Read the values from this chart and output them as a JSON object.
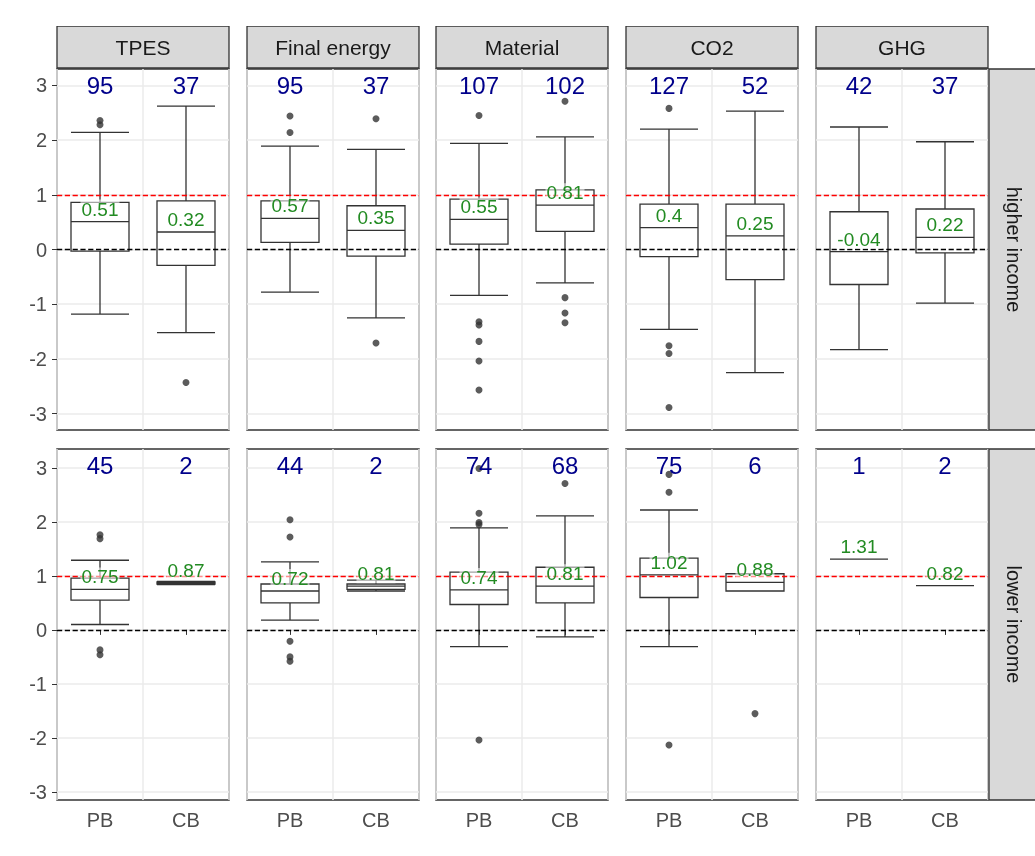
{
  "chart_data": [
    {
      "type": "box",
      "title": "TPES",
      "categories": [
        "PB",
        "CB"
      ],
      "ylim": [
        -3.3,
        3.3
      ],
      "yticks": [
        -3,
        -2,
        -1,
        0,
        1,
        2,
        3
      ],
      "grid": true,
      "tick_labels": "y",
      "boxes": [
        {
          "low": -1.18,
          "q1": -0.03,
          "median": 0.51,
          "q3": 0.86,
          "high": 2.14,
          "outliers": [
            2.36,
            2.28
          ]
        },
        {
          "low": -1.52,
          "q1": -0.29,
          "median": 0.32,
          "q3": 0.89,
          "high": 2.62,
          "outliers": [
            -2.43
          ]
        }
      ],
      "ref_lines": [
        {
          "axis": "y",
          "value": 0,
          "color": "#000000",
          "line_style": "dashed"
        },
        {
          "axis": "y",
          "value": 1,
          "color": "#ff0000",
          "line_style": "dashed"
        }
      ],
      "annotations": [
        "95",
        "37",
        {
          "text": "0.51",
          "x": "PB",
          "y": 0.51
        },
        {
          "text": "0.32",
          "x": "CB",
          "y": 0.32
        }
      ]
    },
    {
      "type": "box",
      "title": "Final energy",
      "categories": [
        "PB",
        "CB"
      ],
      "ylim": [
        -3.3,
        3.3
      ],
      "yticks": [
        -3,
        -2,
        -1,
        0,
        1,
        2,
        3
      ],
      "grid": true,
      "tick_labels": false,
      "boxes": [
        {
          "low": -0.78,
          "q1": 0.13,
          "median": 0.57,
          "q3": 0.89,
          "high": 1.89,
          "outliers": [
            2.44,
            2.14
          ]
        },
        {
          "low": -1.25,
          "q1": -0.12,
          "median": 0.35,
          "q3": 0.8,
          "high": 1.83,
          "outliers": [
            2.39,
            -1.71
          ]
        }
      ],
      "ref_lines": [
        {
          "axis": "y",
          "value": 0,
          "color": "#000000",
          "line_style": "dashed"
        },
        {
          "axis": "y",
          "value": 1,
          "color": "#ff0000",
          "line_style": "dashed"
        }
      ],
      "annotations": [
        "95",
        "37",
        {
          "text": "0.57",
          "x": "PB",
          "y": 0.57
        },
        {
          "text": "0.35",
          "x": "CB",
          "y": 0.35
        }
      ]
    },
    {
      "type": "box",
      "title": "Material",
      "categories": [
        "PB",
        "CB"
      ],
      "ylim": [
        -3.3,
        3.3
      ],
      "yticks": [
        -3,
        -2,
        -1,
        0,
        1,
        2,
        3
      ],
      "grid": true,
      "tick_labels": false,
      "boxes": [
        {
          "low": -0.84,
          "q1": 0.1,
          "median": 0.55,
          "q3": 0.92,
          "high": 1.94,
          "outliers": [
            2.45,
            -1.32,
            -1.38,
            -1.68,
            -2.04,
            -2.57
          ]
        },
        {
          "low": -0.61,
          "q1": 0.33,
          "median": 0.81,
          "q3": 1.09,
          "high": 2.06,
          "outliers": [
            2.71,
            -0.88,
            -1.16,
            -1.34
          ]
        }
      ],
      "ref_lines": [
        {
          "axis": "y",
          "value": 0,
          "color": "#000000",
          "line_style": "dashed"
        },
        {
          "axis": "y",
          "value": 1,
          "color": "#ff0000",
          "line_style": "dashed"
        }
      ],
      "annotations": [
        "107",
        "102",
        {
          "text": "0.55",
          "x": "PB",
          "y": 0.55
        },
        {
          "text": "0.81",
          "x": "CB",
          "y": 0.81
        }
      ]
    },
    {
      "type": "box",
      "title": "CO2",
      "categories": [
        "PB",
        "CB"
      ],
      "ylim": [
        -3.3,
        3.3
      ],
      "yticks": [
        -3,
        -2,
        -1,
        0,
        1,
        2,
        3
      ],
      "grid": true,
      "tick_labels": false,
      "boxes": [
        {
          "low": -1.46,
          "q1": -0.13,
          "median": 0.4,
          "q3": 0.83,
          "high": 2.2,
          "outliers": [
            2.58,
            -1.76,
            -1.9,
            -2.89
          ]
        },
        {
          "low": -2.25,
          "q1": -0.55,
          "median": 0.25,
          "q3": 0.83,
          "high": 2.53
        }
      ],
      "ref_lines": [
        {
          "axis": "y",
          "value": 0,
          "color": "#000000",
          "line_style": "dashed"
        },
        {
          "axis": "y",
          "value": 1,
          "color": "#ff0000",
          "line_style": "dashed"
        }
      ],
      "annotations": [
        "127",
        "52",
        {
          "text": "0.4",
          "x": "PB",
          "y": 0.4
        },
        {
          "text": "0.25",
          "x": "CB",
          "y": 0.25
        }
      ]
    },
    {
      "type": "box",
      "title": "GHG",
      "y2label": "higher income",
      "categories": [
        "PB",
        "CB"
      ],
      "ylim": [
        -3.3,
        3.3
      ],
      "yticks": [
        -3,
        -2,
        -1,
        0,
        1,
        2,
        3
      ],
      "grid": true,
      "tick_labels": false,
      "boxes": [
        {
          "low": -1.83,
          "q1": -0.64,
          "median": -0.04,
          "q3": 0.69,
          "high": 2.24
        },
        {
          "low": -0.98,
          "q1": -0.06,
          "median": 0.22,
          "q3": 0.74,
          "high": 1.97
        }
      ],
      "ref_lines": [
        {
          "axis": "y",
          "value": 0,
          "color": "#000000",
          "line_style": "dashed"
        },
        {
          "axis": "y",
          "value": 1,
          "color": "#ff0000",
          "line_style": "dashed"
        }
      ],
      "annotations": [
        "42",
        "37",
        {
          "text": "-0.04",
          "x": "PB",
          "y": -0.04
        },
        {
          "text": "0.22",
          "x": "CB",
          "y": 0.22
        }
      ]
    },
    {
      "type": "box",
      "categories": [
        "PB",
        "CB"
      ],
      "ylim": [
        -3.15,
        3.35
      ],
      "yticks": [
        -3,
        -2,
        -1,
        0,
        1,
        2,
        3
      ],
      "grid": true,
      "boxes": [
        {
          "low": 0.1,
          "q1": 0.55,
          "median": 0.75,
          "q3": 0.96,
          "high": 1.29,
          "outliers": [
            1.76,
            1.69,
            -0.37,
            -0.46
          ]
        },
        {
          "low": 0.84,
          "q1": 0.85,
          "median": 0.87,
          "q3": 0.89,
          "high": 0.9
        }
      ],
      "ref_lines": [
        {
          "axis": "y",
          "value": 0,
          "color": "#000000",
          "line_style": "dashed"
        },
        {
          "axis": "y",
          "value": 1,
          "color": "#ff0000",
          "line_style": "dashed"
        }
      ],
      "annotations": [
        "45",
        "2",
        {
          "text": "0.75",
          "x": "PB",
          "y": 0.75
        },
        {
          "text": "0.87",
          "x": "CB",
          "y": 0.87
        }
      ]
    },
    {
      "type": "box",
      "categories": [
        "PB",
        "CB"
      ],
      "ylim": [
        -3.15,
        3.35
      ],
      "yticks": [
        -3,
        -2,
        -1,
        0,
        1,
        2,
        3
      ],
      "grid": true,
      "tick_labels": "x",
      "boxes": [
        {
          "low": 0.18,
          "q1": 0.5,
          "median": 0.72,
          "q3": 0.85,
          "high": 1.26,
          "outliers": [
            2.04,
            1.72,
            -0.21,
            -0.5,
            -0.58
          ]
        },
        {
          "low": 0.72,
          "q1": 0.75,
          "median": 0.81,
          "q3": 0.85,
          "high": 0.92
        }
      ],
      "ref_lines": [
        {
          "axis": "y",
          "value": 0,
          "color": "#000000",
          "line_style": "dashed"
        },
        {
          "axis": "y",
          "value": 1,
          "color": "#ff0000",
          "line_style": "dashed"
        }
      ],
      "annotations": [
        "44",
        "2",
        {
          "text": "0.72",
          "x": "PB",
          "y": 0.72
        },
        {
          "text": "0.81",
          "x": "CB",
          "y": 0.81
        }
      ]
    },
    {
      "type": "box",
      "categories": [
        "PB",
        "CB"
      ],
      "ylim": [
        -3.15,
        3.35
      ],
      "yticks": [
        -3,
        -2,
        -1,
        0,
        1,
        2,
        3
      ],
      "grid": true,
      "tick_labels": "x",
      "boxes": [
        {
          "low": -0.31,
          "q1": 0.47,
          "median": 0.74,
          "q3": 1.07,
          "high": 1.89,
          "outliers": [
            2.99,
            2.16,
            1.99,
            1.95,
            -2.04
          ]
        },
        {
          "low": -0.13,
          "q1": 0.5,
          "median": 0.81,
          "q3": 1.16,
          "high": 2.11,
          "outliers": [
            2.71
          ]
        }
      ],
      "ref_lines": [
        {
          "axis": "y",
          "value": 0,
          "color": "#000000",
          "line_style": "dashed"
        },
        {
          "axis": "y",
          "value": 1,
          "color": "#ff0000",
          "line_style": "dashed"
        }
      ],
      "annotations": [
        "74",
        "68",
        {
          "text": "0.74",
          "x": "PB",
          "y": 0.74
        },
        {
          "text": "0.81",
          "x": "CB",
          "y": 0.81
        }
      ]
    },
    {
      "type": "box",
      "categories": [
        "PB",
        "CB"
      ],
      "ylim": [
        -3.15,
        3.35
      ],
      "yticks": [
        -3,
        -2,
        -1,
        0,
        1,
        2,
        3
      ],
      "grid": true,
      "tick_labels": "x",
      "boxes": [
        {
          "low": -0.31,
          "q1": 0.6,
          "median": 1.02,
          "q3": 1.33,
          "high": 2.22,
          "outliers": [
            2.88,
            2.55,
            -2.13
          ]
        },
        {
          "low": 0.72,
          "q1": 0.72,
          "median": 0.88,
          "q3": 1.04,
          "high": 1.04,
          "outliers": [
            -1.55
          ]
        }
      ],
      "ref_lines": [
        {
          "axis": "y",
          "value": 0,
          "color": "#000000",
          "line_style": "dashed"
        },
        {
          "axis": "y",
          "value": 1,
          "color": "#ff0000",
          "line_style": "dashed"
        }
      ],
      "annotations": [
        "75",
        "6",
        {
          "text": "1.02",
          "x": "PB",
          "y": 1.02
        },
        {
          "text": "0.88",
          "x": "CB",
          "y": 0.88
        }
      ]
    },
    {
      "type": "box",
      "y2label": "lower income",
      "categories": [
        "PB",
        "CB"
      ],
      "ylim": [
        -3.15,
        3.35
      ],
      "yticks": [
        -3,
        -2,
        -1,
        0,
        1,
        2,
        3
      ],
      "grid": true,
      "tick_labels": "x",
      "boxes": [
        {
          "low": 1.31,
          "q1": 1.31,
          "median": 1.31,
          "q3": 1.31,
          "high": 1.31
        },
        {
          "low": 0.82,
          "q1": 0.82,
          "median": 0.82,
          "q3": 0.82,
          "high": 0.82
        }
      ],
      "ref_lines": [
        {
          "axis": "y",
          "value": 0,
          "color": "#000000",
          "line_style": "dashed"
        },
        {
          "axis": "y",
          "value": 1,
          "color": "#ff0000",
          "line_style": "dashed"
        }
      ],
      "annotations": [
        "1",
        "2",
        {
          "text": "1.31",
          "x": "PB",
          "y": 1.31
        },
        {
          "text": "0.82",
          "x": "CB",
          "y": 0.82
        }
      ]
    }
  ]
}
